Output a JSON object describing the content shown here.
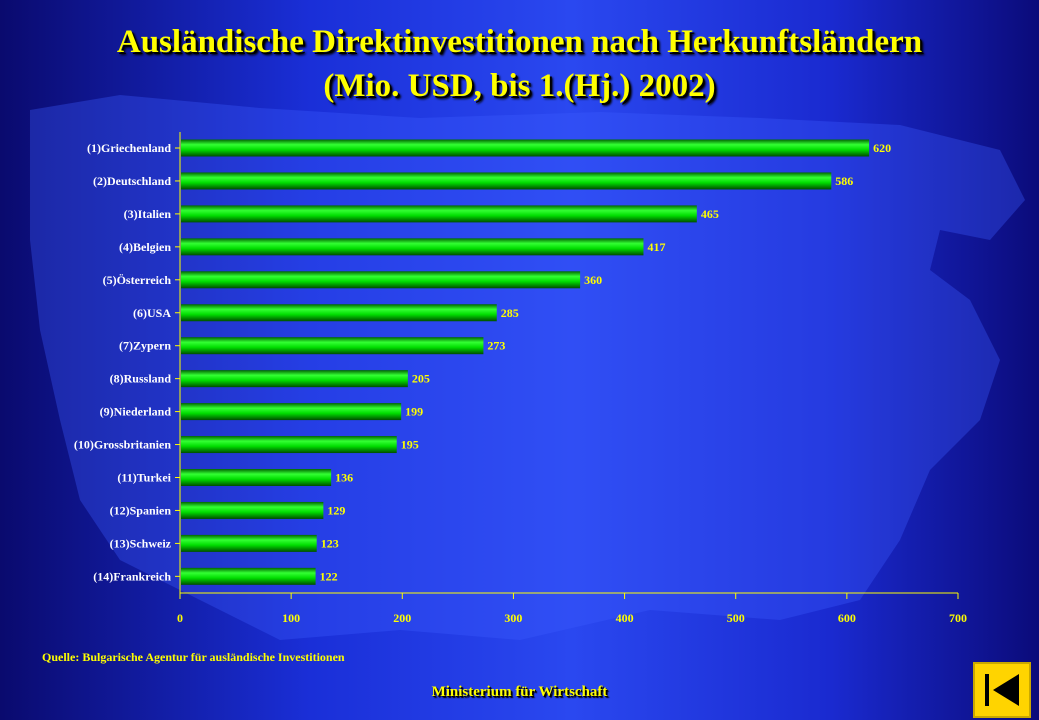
{
  "title": {
    "line1": "Ausländische Direktinvestitionen nach Herkunftsländern",
    "line2": "(Mio. USD, bis 1.(Hj.) 2002)"
  },
  "source": "Quelle: Bulgarische Agentur für ausländische Investitionen",
  "footer": "Ministerium für Wirtschaft",
  "colors": {
    "bar": "#00e000",
    "text": "#ffff00",
    "category_text": "#ffffff",
    "background": "#1a2fd8"
  },
  "icons": {
    "end_button": "end-icon"
  },
  "chart_data": {
    "type": "bar",
    "orientation": "horizontal",
    "categories": [
      "(1)Griechenland",
      "(2)Deutschland",
      "(3)Italien",
      "(4)Belgien",
      "(5)Österreich",
      "(6)USA",
      "(7)Zypern",
      "(8)Russland",
      "(9)Niederland",
      "(10)Grossbritanien",
      "(11)Turkei",
      "(12)Spanien",
      "(13)Schweiz",
      "(14)Frankreich"
    ],
    "values": [
      620,
      586,
      465,
      417,
      360,
      285,
      273,
      205,
      199,
      195,
      136,
      129,
      123,
      122
    ],
    "xlim": [
      0,
      700
    ],
    "xticks": [
      0,
      100,
      200,
      300,
      400,
      500,
      600,
      700
    ],
    "grid": false,
    "legend": "none"
  }
}
